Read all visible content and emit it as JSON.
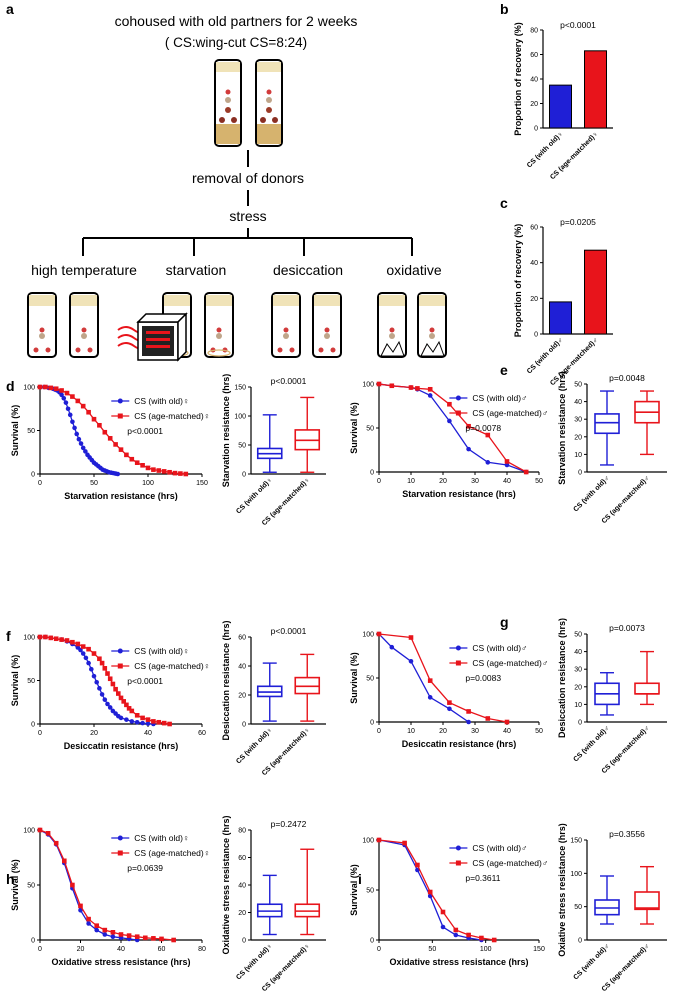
{
  "colors": {
    "blue": "#1f1fd6",
    "red": "#e8141b",
    "axis": "#000000"
  },
  "panels": {
    "a": {
      "label": "a",
      "title_line1": "cohoused with old partners for 2 weeks",
      "title_line2": "( CS:wing-cut CS=8:24)",
      "step_removal": "removal of donors",
      "step_stress": "stress",
      "conditions": [
        "high temperature",
        "starvation",
        "desiccation",
        "oxidative"
      ]
    }
  },
  "chart_data": [
    {
      "id": "b",
      "label": "b",
      "type": "bar",
      "title": "p<0.0001",
      "categories": [
        "CS (with old)♀",
        "CS (age-matched)♀"
      ],
      "values": [
        35,
        63
      ],
      "colors": [
        "#1f1fd6",
        "#e8141b"
      ],
      "ylabel": "Proportion of recovery (%)",
      "ylim": [
        0,
        80
      ],
      "yticks": [
        0,
        20,
        40,
        60,
        80
      ]
    },
    {
      "id": "c",
      "label": "c",
      "type": "bar",
      "title": "p=0.0205",
      "categories": [
        "CS (with old)♂",
        "CS (age-matched)♂"
      ],
      "values": [
        18,
        47
      ],
      "colors": [
        "#1f1fd6",
        "#e8141b"
      ],
      "ylabel": "Proportion of recovery (%)",
      "ylim": [
        0,
        60
      ],
      "yticks": [
        0,
        20,
        40,
        60
      ]
    },
    {
      "id": "d",
      "label": "d",
      "type": "line",
      "title": "",
      "xlabel": "Starvation resistance (hrs)",
      "ylabel": "Survival (%)",
      "xlim": [
        0,
        150
      ],
      "xticks": [
        0,
        50,
        100,
        150
      ],
      "ylim": [
        0,
        100
      ],
      "yticks": [
        0,
        50,
        100
      ],
      "pvalue": "p<0.0001",
      "series": [
        {
          "name": "CS (with old)♀",
          "marker": "circle",
          "x": [
            0,
            4,
            8,
            12,
            14,
            16,
            18,
            20,
            22,
            24,
            26,
            28,
            30,
            32,
            34,
            36,
            38,
            40,
            42,
            44,
            46,
            48,
            50,
            52,
            54,
            56,
            58,
            60,
            62,
            64,
            66,
            68,
            70,
            72
          ],
          "y": [
            100,
            100,
            99,
            98,
            97,
            96,
            94,
            91,
            87,
            82,
            75,
            68,
            60,
            53,
            46,
            40,
            35,
            30,
            26,
            22,
            19,
            16,
            13,
            11,
            9,
            7,
            5,
            4,
            3,
            2,
            1.5,
            1,
            0.5,
            0
          ]
        },
        {
          "name": "CS (age-matched)♀",
          "marker": "square",
          "x": [
            0,
            5,
            10,
            15,
            20,
            25,
            30,
            35,
            40,
            45,
            50,
            55,
            60,
            65,
            70,
            75,
            80,
            85,
            90,
            95,
            100,
            105,
            110,
            115,
            120,
            125,
            130,
            135
          ],
          "y": [
            100,
            100,
            99,
            98,
            96,
            93,
            89,
            84,
            78,
            71,
            63,
            56,
            48,
            41,
            34,
            28,
            22,
            17,
            13,
            10,
            7,
            5,
            4,
            3,
            2,
            1,
            0.5,
            0
          ]
        }
      ]
    },
    {
      "id": "d-box",
      "label": "",
      "type": "box",
      "title": "p<0.0001",
      "ylabel": "Starvation resistance (hrs)",
      "ylim": [
        0,
        150
      ],
      "yticks": [
        0,
        50,
        100,
        150
      ],
      "categories": [
        "CS (with old)♀",
        "CS (age-matched)♀"
      ],
      "boxes": [
        {
          "min": 3,
          "q1": 27,
          "median": 35,
          "q3": 44,
          "max": 102
        },
        {
          "min": 3,
          "q1": 42,
          "median": 58,
          "q3": 76,
          "max": 132
        }
      ]
    },
    {
      "id": "e",
      "label": "e",
      "type": "line",
      "title": "",
      "xlabel": "Starvation resistance (hrs)",
      "ylabel": "Survival (%)",
      "xlim": [
        0,
        50
      ],
      "xticks": [
        0,
        10,
        20,
        30,
        40,
        50
      ],
      "ylim": [
        0,
        100
      ],
      "yticks": [
        0,
        50,
        100
      ],
      "pvalue": "p=0.0078",
      "series": [
        {
          "name": "CS (with old)♂",
          "marker": "circle",
          "x": [
            0,
            4,
            10,
            12,
            16,
            22,
            28,
            34,
            40,
            46
          ],
          "y": [
            100,
            98,
            96,
            94,
            87,
            58,
            26,
            11,
            8,
            0
          ]
        },
        {
          "name": "CS (age-matched)♂",
          "marker": "square",
          "x": [
            0,
            4,
            10,
            12,
            16,
            22,
            28,
            34,
            40,
            46
          ],
          "y": [
            100,
            98,
            96,
            95,
            94,
            77,
            52,
            42,
            12,
            0
          ]
        }
      ]
    },
    {
      "id": "e-box",
      "label": "",
      "type": "box",
      "title": "p=0.0048",
      "ylabel": "Starvation resistance (hrs)",
      "ylim": [
        0,
        50
      ],
      "yticks": [
        0,
        10,
        20,
        30,
        40,
        50
      ],
      "categories": [
        "CS (with old)♂",
        "CS (age-matched)♂"
      ],
      "boxes": [
        {
          "min": 4,
          "q1": 22,
          "median": 28,
          "q3": 33,
          "max": 46
        },
        {
          "min": 10,
          "q1": 28,
          "median": 34,
          "q3": 40,
          "max": 46
        }
      ]
    },
    {
      "id": "f",
      "label": "f",
      "type": "line",
      "title": "",
      "xlabel": "Desiccatin resistance (hrs)",
      "ylabel": "Survival (%)",
      "xlim": [
        0,
        60
      ],
      "xticks": [
        0,
        20,
        40,
        60
      ],
      "ylim": [
        0,
        100
      ],
      "yticks": [
        0,
        50,
        100
      ],
      "pvalue": "p<0.0001",
      "series": [
        {
          "name": "CS (with old)♀",
          "marker": "circle",
          "x": [
            0,
            2,
            4,
            6,
            8,
            10,
            12,
            14,
            15,
            16,
            17,
            18,
            19,
            20,
            21,
            22,
            23,
            24,
            25,
            26,
            27,
            28,
            29,
            30,
            32,
            34,
            36,
            38,
            40,
            42
          ],
          "y": [
            100,
            100,
            99,
            98,
            97,
            95,
            92,
            88,
            85,
            81,
            76,
            70,
            63,
            55,
            48,
            41,
            34,
            28,
            23,
            19,
            15,
            12,
            9,
            7,
            5,
            3,
            2,
            1,
            0.5,
            0
          ]
        },
        {
          "name": "CS (age-matched)♀",
          "marker": "square",
          "x": [
            0,
            2,
            4,
            6,
            8,
            10,
            12,
            14,
            16,
            18,
            20,
            22,
            23,
            24,
            25,
            26,
            27,
            28,
            29,
            30,
            31,
            32,
            33,
            34,
            36,
            38,
            40,
            42,
            44,
            46,
            48
          ],
          "y": [
            100,
            100,
            99,
            98,
            97,
            96,
            94,
            92,
            89,
            86,
            81,
            75,
            70,
            64,
            58,
            52,
            46,
            40,
            35,
            30,
            26,
            22,
            18,
            15,
            10,
            7,
            5,
            3,
            2,
            1,
            0
          ]
        }
      ]
    },
    {
      "id": "f-box",
      "label": "",
      "type": "box",
      "title": "p<0.0001",
      "ylabel": "Desiccation resistance (hrs)",
      "ylim": [
        0,
        60
      ],
      "yticks": [
        0,
        20,
        40,
        60
      ],
      "categories": [
        "CS (with old)♀",
        "CS (age-matched)♀"
      ],
      "boxes": [
        {
          "min": 2,
          "q1": 19,
          "median": 22,
          "q3": 26,
          "max": 42
        },
        {
          "min": 2,
          "q1": 21,
          "median": 26,
          "q3": 32,
          "max": 48
        }
      ]
    },
    {
      "id": "g",
      "label": "g",
      "type": "line",
      "title": "",
      "xlabel": "Desiccatin resistance (hrs)",
      "ylabel": "Survival (%)",
      "xlim": [
        0,
        50
      ],
      "xticks": [
        0,
        10,
        20,
        30,
        40,
        50
      ],
      "ylim": [
        0,
        100
      ],
      "yticks": [
        0,
        50,
        100
      ],
      "pvalue": "p=0.0083",
      "series": [
        {
          "name": "CS (with old)♂",
          "marker": "circle",
          "x": [
            0,
            4,
            10,
            16,
            22,
            28
          ],
          "y": [
            100,
            85,
            69,
            28,
            15,
            0
          ]
        },
        {
          "name": "CS (age-matched)♂",
          "marker": "square",
          "x": [
            0,
            10,
            16,
            22,
            28,
            34,
            40
          ],
          "y": [
            100,
            96,
            47,
            22,
            12,
            4,
            0
          ]
        }
      ]
    },
    {
      "id": "g-box",
      "label": "",
      "type": "box",
      "title": "p=0.0073",
      "ylabel": "Desiccation resistance (hrs)",
      "ylim": [
        0,
        50
      ],
      "yticks": [
        0,
        10,
        20,
        30,
        40,
        50
      ],
      "categories": [
        "CS (with old)♂",
        "CS (age-matched)♂"
      ],
      "boxes": [
        {
          "min": 4,
          "q1": 10,
          "median": 16,
          "q3": 22,
          "max": 28
        },
        {
          "min": 10,
          "q1": 16,
          "median": 16,
          "q3": 22,
          "max": 40
        }
      ]
    },
    {
      "id": "h",
      "label": "h",
      "type": "line",
      "title": "",
      "xlabel": "Oxidative stress resistance (hrs)",
      "ylabel": "Survival (%)",
      "xlim": [
        0,
        80
      ],
      "xticks": [
        0,
        20,
        40,
        60,
        80
      ],
      "ylim": [
        0,
        100
      ],
      "yticks": [
        0,
        50,
        100
      ],
      "pvalue": "p=0.0639",
      "series": [
        {
          "name": "CS (with old)♀",
          "marker": "circle",
          "x": [
            0,
            4,
            8,
            12,
            16,
            20,
            24,
            28,
            32,
            36,
            40,
            44,
            48
          ],
          "y": [
            100,
            96,
            87,
            70,
            47,
            27,
            15,
            9,
            5,
            3,
            2,
            1,
            0
          ]
        },
        {
          "name": "CS (age-matched)♀",
          "marker": "square",
          "x": [
            0,
            4,
            8,
            12,
            16,
            20,
            24,
            28,
            32,
            36,
            40,
            44,
            48,
            52,
            56,
            60,
            66
          ],
          "y": [
            100,
            97,
            88,
            72,
            50,
            31,
            19,
            13,
            9,
            7,
            5,
            4,
            3,
            2,
            1.5,
            1,
            0
          ]
        }
      ]
    },
    {
      "id": "h-box",
      "label": "",
      "type": "box",
      "title": "p=0.2472",
      "ylabel": "Oxidative stress resistance (hrs)",
      "ylim": [
        0,
        80
      ],
      "yticks": [
        0,
        20,
        40,
        60,
        80
      ],
      "categories": [
        "CS (with old)♀",
        "CS (age-matched)♀"
      ],
      "boxes": [
        {
          "min": 4,
          "q1": 17,
          "median": 21,
          "q3": 26,
          "max": 47
        },
        {
          "min": 4,
          "q1": 17,
          "median": 21,
          "q3": 26,
          "max": 66
        }
      ]
    },
    {
      "id": "i",
      "label": "i",
      "type": "line",
      "title": "",
      "xlabel": "Oxidative stress resistance (hrs)",
      "ylabel": "Survival (%)",
      "xlim": [
        0,
        150
      ],
      "xticks": [
        0,
        50,
        100,
        150
      ],
      "ylim": [
        0,
        100
      ],
      "yticks": [
        0,
        50,
        100
      ],
      "pvalue": "p=0.3611",
      "series": [
        {
          "name": "CS (with old)♂",
          "marker": "circle",
          "x": [
            0,
            24,
            36,
            48,
            60,
            72,
            84,
            96
          ],
          "y": [
            100,
            95,
            70,
            44,
            13,
            5,
            2,
            0
          ]
        },
        {
          "name": "CS (age-matched)♂",
          "marker": "square",
          "x": [
            0,
            24,
            36,
            48,
            60,
            72,
            84,
            96,
            108
          ],
          "y": [
            100,
            97,
            75,
            48,
            28,
            10,
            5,
            2,
            0
          ]
        }
      ]
    },
    {
      "id": "i-box",
      "label": "",
      "type": "box",
      "title": "p=0.3556",
      "ylabel": "Oxiative stress resistance (hrs)",
      "ylim": [
        0,
        150
      ],
      "yticks": [
        0,
        50,
        100,
        150
      ],
      "categories": [
        "CS (with old)♂",
        "CS (age-matched)♂"
      ],
      "boxes": [
        {
          "min": 24,
          "q1": 38,
          "median": 48,
          "q3": 60,
          "max": 96
        },
        {
          "min": 24,
          "q1": 46,
          "median": 48,
          "q3": 72,
          "max": 110
        }
      ]
    }
  ]
}
